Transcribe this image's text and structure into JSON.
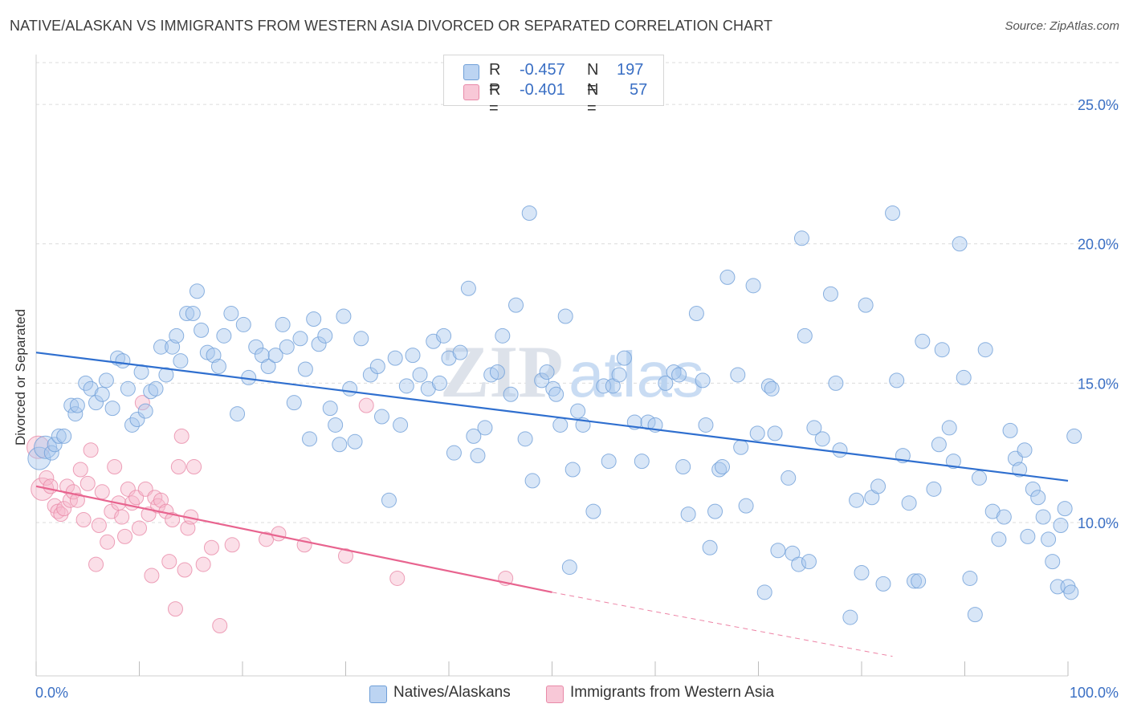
{
  "header": {
    "title": "NATIVE/ALASKAN VS IMMIGRANTS FROM WESTERN ASIA DIVORCED OR SEPARATED CORRELATION CHART",
    "source": "Source: ZipAtlas.com"
  },
  "legend": {
    "rows": [
      {
        "r_label": "R =",
        "r_value": "-0.457",
        "n_label": "N =",
        "n_value": "197"
      },
      {
        "r_label": "R =",
        "r_value": "-0.401",
        "n_label": "N =",
        "n_value": "57"
      }
    ]
  },
  "watermark": {
    "zip": "ZIP",
    "atlas": "atlas"
  },
  "colors": {
    "blue_fill": "#a9c8ee",
    "blue_stroke": "#6f9fd8",
    "blue_line": "#2f6fcf",
    "pink_fill": "#f6b8cb",
    "pink_stroke": "#e88aa8",
    "pink_line": "#e8648f",
    "tick_text": "#3a6fc4",
    "grid": "#dcdcdc"
  },
  "chart_data": {
    "type": "scatter",
    "title": "NATIVE/ALASKAN VS IMMIGRANTS FROM WESTERN ASIA DIVORCED OR SEPARATED CORRELATION CHART",
    "xlabel": "",
    "ylabel": "Divorced or Separated",
    "xlim": [
      0,
      100
    ],
    "ylim": [
      4.5,
      26.5
    ],
    "x_tick_labels": [
      "0.0%",
      "100.0%"
    ],
    "y_ticks": [
      10,
      15,
      20,
      25
    ],
    "y_tick_labels": [
      "10.0%",
      "15.0%",
      "20.0%",
      "25.0%"
    ],
    "grid": true,
    "legend_position": "bottom",
    "series": [
      {
        "name": "Natives/Alaskans",
        "color": "#a9c8ee",
        "R": -0.457,
        "N": 197,
        "trend": {
          "x": [
            0,
            100
          ],
          "y": [
            16.1,
            11.5
          ]
        },
        "points": [
          [
            0.3,
            12.3
          ],
          [
            0.9,
            12.7
          ],
          [
            1.5,
            12.5
          ],
          [
            1.8,
            12.8
          ],
          [
            2.2,
            13.1
          ],
          [
            2.7,
            13.1
          ],
          [
            3.4,
            14.2
          ],
          [
            3.8,
            13.9
          ],
          [
            4.0,
            14.2
          ],
          [
            4.8,
            15.0
          ],
          [
            5.3,
            14.8
          ],
          [
            5.8,
            14.3
          ],
          [
            6.4,
            14.6
          ],
          [
            6.8,
            15.1
          ],
          [
            7.4,
            14.1
          ],
          [
            7.9,
            15.9
          ],
          [
            8.4,
            15.8
          ],
          [
            8.9,
            14.8
          ],
          [
            9.3,
            13.5
          ],
          [
            9.8,
            13.7
          ],
          [
            10.2,
            15.4
          ],
          [
            10.6,
            14.0
          ],
          [
            11.1,
            14.7
          ],
          [
            11.6,
            14.8
          ],
          [
            12.1,
            16.3
          ],
          [
            12.6,
            15.3
          ],
          [
            13.2,
            16.3
          ],
          [
            13.6,
            16.7
          ],
          [
            14.0,
            15.8
          ],
          [
            14.6,
            17.5
          ],
          [
            15.2,
            17.5
          ],
          [
            15.6,
            18.3
          ],
          [
            16.0,
            16.9
          ],
          [
            16.6,
            16.1
          ],
          [
            17.2,
            16.0
          ],
          [
            17.7,
            15.6
          ],
          [
            18.2,
            16.7
          ],
          [
            18.9,
            17.5
          ],
          [
            19.5,
            13.9
          ],
          [
            20.1,
            17.1
          ],
          [
            20.6,
            15.2
          ],
          [
            21.3,
            16.3
          ],
          [
            21.9,
            16.0
          ],
          [
            22.5,
            15.6
          ],
          [
            23.2,
            16.0
          ],
          [
            23.9,
            17.1
          ],
          [
            24.3,
            16.3
          ],
          [
            25.0,
            14.3
          ],
          [
            25.6,
            16.6
          ],
          [
            26.1,
            15.5
          ],
          [
            26.5,
            13.0
          ],
          [
            26.9,
            17.3
          ],
          [
            27.4,
            16.4
          ],
          [
            28.0,
            16.7
          ],
          [
            28.5,
            14.1
          ],
          [
            29.0,
            13.5
          ],
          [
            29.4,
            12.8
          ],
          [
            29.8,
            17.4
          ],
          [
            30.4,
            14.8
          ],
          [
            30.9,
            12.9
          ],
          [
            31.5,
            16.6
          ],
          [
            32.4,
            15.3
          ],
          [
            33.1,
            15.6
          ],
          [
            33.5,
            13.8
          ],
          [
            34.2,
            10.8
          ],
          [
            34.8,
            15.9
          ],
          [
            35.3,
            13.5
          ],
          [
            35.9,
            14.9
          ],
          [
            36.5,
            16.0
          ],
          [
            37.2,
            15.3
          ],
          [
            38.0,
            14.8
          ],
          [
            38.5,
            16.5
          ],
          [
            39.1,
            15.0
          ],
          [
            39.5,
            16.7
          ],
          [
            40.0,
            15.9
          ],
          [
            40.5,
            12.5
          ],
          [
            41.1,
            16.1
          ],
          [
            41.9,
            18.4
          ],
          [
            42.4,
            13.1
          ],
          [
            42.8,
            12.4
          ],
          [
            43.5,
            13.4
          ],
          [
            44.1,
            15.3
          ],
          [
            44.7,
            15.4
          ],
          [
            45.2,
            16.7
          ],
          [
            46.0,
            14.6
          ],
          [
            46.5,
            17.8
          ],
          [
            47.4,
            13.0
          ],
          [
            47.8,
            21.1
          ],
          [
            48.1,
            11.5
          ],
          [
            49.0,
            15.1
          ],
          [
            49.5,
            15.4
          ],
          [
            50.1,
            14.8
          ],
          [
            50.4,
            14.6
          ],
          [
            50.8,
            13.5
          ],
          [
            51.3,
            17.4
          ],
          [
            51.7,
            8.4
          ],
          [
            52.0,
            11.9
          ],
          [
            52.5,
            14.0
          ],
          [
            53.0,
            13.5
          ],
          [
            54.0,
            10.4
          ],
          [
            55.0,
            14.9
          ],
          [
            55.5,
            12.2
          ],
          [
            55.9,
            14.9
          ],
          [
            56.5,
            15.3
          ],
          [
            57.0,
            15.9
          ],
          [
            58.0,
            13.6
          ],
          [
            58.7,
            12.2
          ],
          [
            59.3,
            13.6
          ],
          [
            60.0,
            13.5
          ],
          [
            61.0,
            15.0
          ],
          [
            61.8,
            15.4
          ],
          [
            62.3,
            15.3
          ],
          [
            62.7,
            12.0
          ],
          [
            63.2,
            10.3
          ],
          [
            64.0,
            17.5
          ],
          [
            64.6,
            15.1
          ],
          [
            64.9,
            13.5
          ],
          [
            65.3,
            9.1
          ],
          [
            65.8,
            10.4
          ],
          [
            66.2,
            11.9
          ],
          [
            66.5,
            12.0
          ],
          [
            67.0,
            18.8
          ],
          [
            68.0,
            15.3
          ],
          [
            68.3,
            12.7
          ],
          [
            68.8,
            10.6
          ],
          [
            69.5,
            18.5
          ],
          [
            69.9,
            13.2
          ],
          [
            70.6,
            7.5
          ],
          [
            71.0,
            14.9
          ],
          [
            71.3,
            14.8
          ],
          [
            71.6,
            13.2
          ],
          [
            71.9,
            9.0
          ],
          [
            72.9,
            11.6
          ],
          [
            73.3,
            8.9
          ],
          [
            73.9,
            8.5
          ],
          [
            74.2,
            20.2
          ],
          [
            74.5,
            16.7
          ],
          [
            74.9,
            8.6
          ],
          [
            75.4,
            13.4
          ],
          [
            76.2,
            13.0
          ],
          [
            77.0,
            18.2
          ],
          [
            77.5,
            15.0
          ],
          [
            77.9,
            12.6
          ],
          [
            78.9,
            6.6
          ],
          [
            79.5,
            10.8
          ],
          [
            80.0,
            8.2
          ],
          [
            80.4,
            17.8
          ],
          [
            81.0,
            10.9
          ],
          [
            81.6,
            11.3
          ],
          [
            82.1,
            7.8
          ],
          [
            83.0,
            21.1
          ],
          [
            83.4,
            15.1
          ],
          [
            84.0,
            12.4
          ],
          [
            84.6,
            10.7
          ],
          [
            85.1,
            7.9
          ],
          [
            85.5,
            7.9
          ],
          [
            85.9,
            16.5
          ],
          [
            87.0,
            11.2
          ],
          [
            87.5,
            12.8
          ],
          [
            87.8,
            16.2
          ],
          [
            88.5,
            13.4
          ],
          [
            88.9,
            12.2
          ],
          [
            89.5,
            20.0
          ],
          [
            89.9,
            15.2
          ],
          [
            90.5,
            8.0
          ],
          [
            91.0,
            6.7
          ],
          [
            91.4,
            11.6
          ],
          [
            92.0,
            16.2
          ],
          [
            92.7,
            10.4
          ],
          [
            93.3,
            9.4
          ],
          [
            93.8,
            10.2
          ],
          [
            94.4,
            13.3
          ],
          [
            94.9,
            12.3
          ],
          [
            95.3,
            11.9
          ],
          [
            95.8,
            12.6
          ],
          [
            96.1,
            9.5
          ],
          [
            96.6,
            11.2
          ],
          [
            97.1,
            10.9
          ],
          [
            97.6,
            10.2
          ],
          [
            98.1,
            9.4
          ],
          [
            98.5,
            8.6
          ],
          [
            99.0,
            7.7
          ],
          [
            99.3,
            9.9
          ],
          [
            99.7,
            10.5
          ],
          [
            100.0,
            7.7
          ],
          [
            100.3,
            7.5
          ],
          [
            100.6,
            13.1
          ]
        ]
      },
      {
        "name": "Immigrants from Western Asia",
        "color": "#f6b8cb",
        "R": -0.401,
        "N": 57,
        "trend": {
          "x": [
            0,
            50
          ],
          "y": [
            11.3,
            7.5
          ]
        },
        "trend_extended": {
          "x": [
            50,
            83
          ],
          "y": [
            7.5,
            5.2
          ]
        },
        "points": [
          [
            0.2,
            12.7
          ],
          [
            0.6,
            11.2
          ],
          [
            1.0,
            11.6
          ],
          [
            1.4,
            11.3
          ],
          [
            1.8,
            10.6
          ],
          [
            2.1,
            10.4
          ],
          [
            2.4,
            10.3
          ],
          [
            2.7,
            10.5
          ],
          [
            3.0,
            11.3
          ],
          [
            3.3,
            10.8
          ],
          [
            3.6,
            11.1
          ],
          [
            4.0,
            10.8
          ],
          [
            4.3,
            11.9
          ],
          [
            4.6,
            10.1
          ],
          [
            5.0,
            11.4
          ],
          [
            5.3,
            12.6
          ],
          [
            5.8,
            8.5
          ],
          [
            6.1,
            9.9
          ],
          [
            6.4,
            11.1
          ],
          [
            6.9,
            9.3
          ],
          [
            7.3,
            10.4
          ],
          [
            7.6,
            12.0
          ],
          [
            8.0,
            10.7
          ],
          [
            8.3,
            10.2
          ],
          [
            8.6,
            9.5
          ],
          [
            8.9,
            11.2
          ],
          [
            9.3,
            10.7
          ],
          [
            9.7,
            10.9
          ],
          [
            10.0,
            9.8
          ],
          [
            10.3,
            14.3
          ],
          [
            10.6,
            11.2
          ],
          [
            10.9,
            10.3
          ],
          [
            11.2,
            8.1
          ],
          [
            11.5,
            10.9
          ],
          [
            11.8,
            10.6
          ],
          [
            12.1,
            10.8
          ],
          [
            12.6,
            10.4
          ],
          [
            12.9,
            8.6
          ],
          [
            13.2,
            10.1
          ],
          [
            13.5,
            6.9
          ],
          [
            13.8,
            12.0
          ],
          [
            14.1,
            13.1
          ],
          [
            14.4,
            8.3
          ],
          [
            14.7,
            9.8
          ],
          [
            15.0,
            10.2
          ],
          [
            15.3,
            12.0
          ],
          [
            16.2,
            8.5
          ],
          [
            17.0,
            9.1
          ],
          [
            17.8,
            6.3
          ],
          [
            19.0,
            9.2
          ],
          [
            22.3,
            9.4
          ],
          [
            23.5,
            9.6
          ],
          [
            26.0,
            9.2
          ],
          [
            30.0,
            8.8
          ],
          [
            32.0,
            14.2
          ],
          [
            35.0,
            8.0
          ],
          [
            45.5,
            8.0
          ]
        ]
      }
    ]
  },
  "bottom_legend": {
    "items": [
      {
        "label": "Natives/Alaskans"
      },
      {
        "label": "Immigrants from Western Asia"
      }
    ]
  }
}
